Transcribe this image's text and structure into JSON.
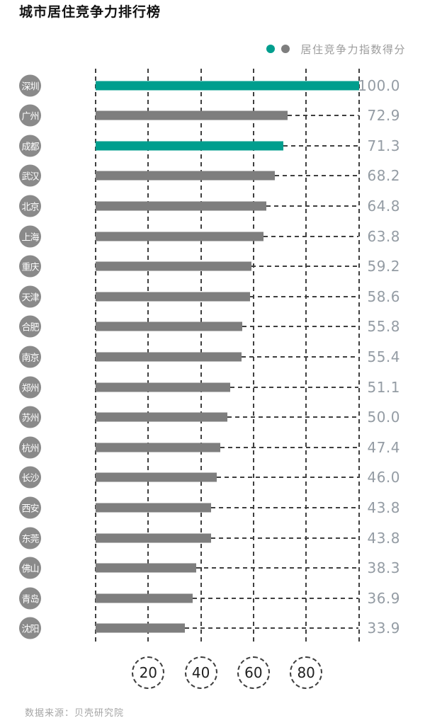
{
  "title": "城市居住竞争力排行榜",
  "legend": {
    "label": "居住竞争力指数得分"
  },
  "footer": {
    "source": "数据来源：贝壳研究院"
  },
  "colors": {
    "highlight": "#009e8e",
    "bar": "#7e7e7e",
    "badge": "#8a8a8a",
    "dash": "#3f3f3f",
    "value_text": "#949ca4"
  },
  "chart_data": {
    "type": "bar",
    "orientation": "horizontal",
    "title": "城市居住竞争力排行榜",
    "legend_label": "居住竞争力指数得分",
    "source": "数据来源：贝壳研究院",
    "categories": [
      "深圳",
      "广州",
      "成都",
      "武汉",
      "北京",
      "上海",
      "重庆",
      "天津",
      "合肥",
      "南京",
      "郑州",
      "苏州",
      "杭州",
      "长沙",
      "西安",
      "东莞",
      "佛山",
      "青岛",
      "沈阳"
    ],
    "values": [
      100.0,
      72.9,
      71.3,
      68.2,
      64.8,
      63.8,
      59.2,
      58.6,
      55.8,
      55.4,
      51.1,
      50.0,
      47.4,
      46.0,
      43.8,
      43.8,
      38.3,
      36.9,
      33.9
    ],
    "value_labels": [
      "100.0",
      "72.9",
      "71.3",
      "68.2",
      "64.8",
      "63.8",
      "59.2",
      "58.6",
      "55.8",
      "55.4",
      "51.1",
      "50.0",
      "47.4",
      "46.0",
      "43.8",
      "43.8",
      "38.3",
      "36.9",
      "33.9"
    ],
    "highlight_indices": [
      0,
      2
    ],
    "x_ticks": [
      "20",
      "40",
      "60",
      "80"
    ],
    "xlim": [
      0,
      100
    ],
    "grid": "dashed-vertical",
    "legend_position": "top-right"
  }
}
